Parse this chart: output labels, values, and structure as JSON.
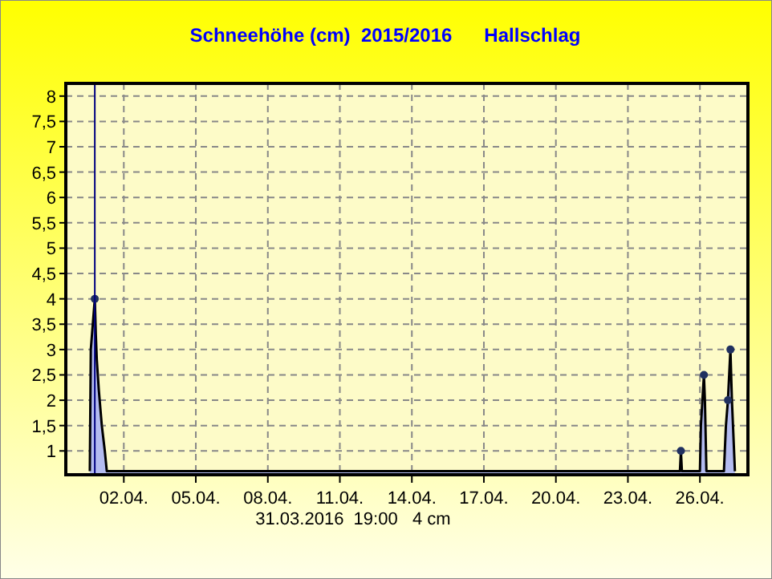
{
  "chart_data": {
    "type": "area",
    "title": "Schneehöhe (cm)  2015/2016      Hallschlag",
    "xlim": [
      "2016-03-30T14:00",
      "2016-04-28T00:00"
    ],
    "xticks": [
      {
        "value": "2016-04-02",
        "label": "02.04."
      },
      {
        "value": "2016-04-05",
        "label": "05.04."
      },
      {
        "value": "2016-04-08",
        "label": "08.04."
      },
      {
        "value": "2016-04-11",
        "label": "11.04."
      },
      {
        "value": "2016-04-14",
        "label": "14.04."
      },
      {
        "value": "2016-04-17",
        "label": "17.04."
      },
      {
        "value": "2016-04-20",
        "label": "20.04."
      },
      {
        "value": "2016-04-23",
        "label": "23.04."
      },
      {
        "value": "2016-04-26",
        "label": "26.04."
      }
    ],
    "ylim": [
      0.53,
      8.25
    ],
    "yticks": [
      {
        "value": 1,
        "label": "1"
      },
      {
        "value": 1.5,
        "label": "1,5"
      },
      {
        "value": 2,
        "label": "2"
      },
      {
        "value": 2.5,
        "label": "2,5"
      },
      {
        "value": 3,
        "label": "3"
      },
      {
        "value": 3.5,
        "label": "3,5"
      },
      {
        "value": 4,
        "label": "4"
      },
      {
        "value": 4.5,
        "label": "4,5"
      },
      {
        "value": 5,
        "label": "5"
      },
      {
        "value": 5.5,
        "label": "5,5"
      },
      {
        "value": 6,
        "label": "6"
      },
      {
        "value": 6.5,
        "label": "6,5"
      },
      {
        "value": 7,
        "label": "7"
      },
      {
        "value": 7.5,
        "label": "7,5"
      },
      {
        "value": 8,
        "label": "8"
      }
    ],
    "grid": true,
    "series": [
      {
        "color": "#b4bcf0",
        "x": [
          "2016-03-31T14:00",
          "2016-03-31T15:00",
          "2016-03-31T19:00",
          "2016-03-31T20:00",
          "2016-03-31T21:00",
          "2016-03-31T23:00",
          "2016-04-01T02:00",
          "2016-04-01T05:00",
          "2016-04-01T07:00",
          "2016-04-25T04:00",
          "2016-04-25T05:00",
          "2016-04-25T06:00",
          "2016-04-26T00:00",
          "2016-04-26T01:00",
          "2016-04-26T04:00",
          "2016-04-26T05:00",
          "2016-04-26T06:30",
          "2016-04-27T00:00",
          "2016-04-27T02:00",
          "2016-04-27T04:00",
          "2016-04-27T06:30",
          "2016-04-27T08:00",
          "2016-04-27T11:00"
        ],
        "values": [
          0.6,
          3,
          4,
          3.3,
          2.8,
          2.2,
          1.5,
          1,
          0.6,
          0.6,
          1,
          0.6,
          0.6,
          1.5,
          2.5,
          2,
          0.6,
          0.6,
          1.5,
          2,
          3,
          2,
          0.6
        ]
      },
      {
        "type": "scatter",
        "color": "#203060",
        "marker": "circle",
        "x": [
          "2016-03-31T19:00",
          "2016-04-25T05:00",
          "2016-04-26T04:00",
          "2016-04-27T04:00",
          "2016-04-27T06:30"
        ],
        "values": [
          4,
          1,
          2.5,
          2,
          3
        ]
      }
    ],
    "ref_lines": [
      {
        "axis": "x",
        "value": "2016-03-31T19:00",
        "color": "#000080"
      }
    ],
    "annotations": [
      "31.03.2016  19:00   4 cm"
    ]
  }
}
